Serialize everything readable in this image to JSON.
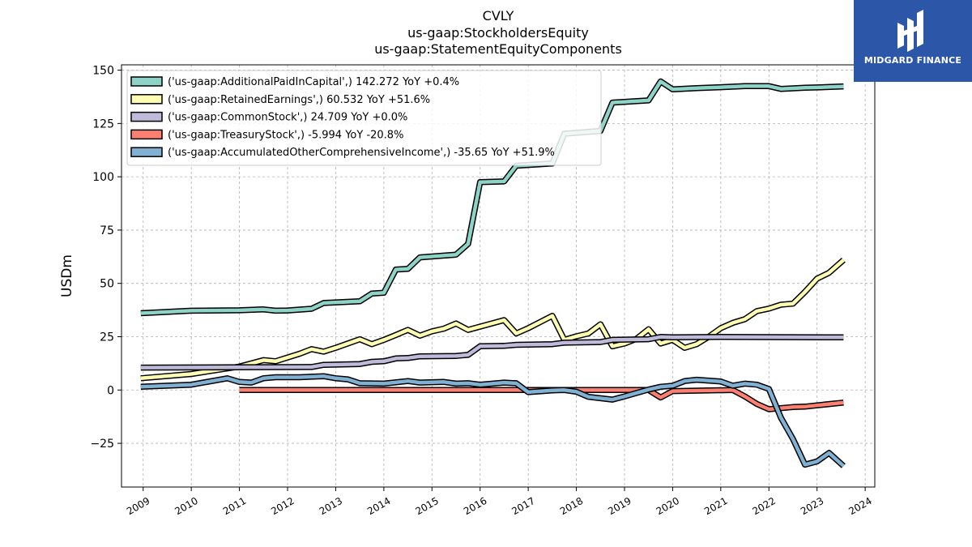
{
  "header": {
    "title_line1": "CVLY",
    "title_line2": "us-gaap:StockholdersEquity",
    "title_line3": "us-gaap:StatementEquityComponents"
  },
  "logo": {
    "text": "MIDGARD FINANCE",
    "color": "#2c56a8"
  },
  "chart_data": {
    "type": "line",
    "title": "CVLY us-gaap:StockholdersEquity us-gaap:StatementEquityComponents",
    "xlabel": "",
    "ylabel": "USDm",
    "xlim": [
      2008.55,
      2024.2
    ],
    "ylim": [
      -45.5,
      152.5
    ],
    "x_ticks": [
      2009,
      2010,
      2011,
      2012,
      2013,
      2014,
      2015,
      2016,
      2017,
      2018,
      2019,
      2020,
      2021,
      2022,
      2023,
      2024
    ],
    "x_tick_labels": [
      "2009",
      "2010",
      "2011",
      "2012",
      "2013",
      "2014",
      "2015",
      "2016",
      "2017",
      "2018",
      "2019",
      "2020",
      "2021",
      "2022",
      "2023",
      "2024"
    ],
    "y_ticks": [
      -25,
      0,
      25,
      50,
      75,
      100,
      125,
      150
    ],
    "y_tick_labels": [
      "−25",
      "0",
      "25",
      "50",
      "75",
      "100",
      "125",
      "150"
    ],
    "grid": true,
    "legend_position": "top-left",
    "series": [
      {
        "name": "('us-gaap:AdditionalPaidInCapital',) 142.272 YoY +0.4%",
        "color": "#8dd3c7",
        "points": [
          [
            2008.95,
            36
          ],
          [
            2010,
            37.2
          ],
          [
            2011,
            37.4
          ],
          [
            2011.5,
            37.8
          ],
          [
            2011.75,
            37.2
          ],
          [
            2012,
            37.3
          ],
          [
            2012.5,
            38.1
          ],
          [
            2012.75,
            40.8
          ],
          [
            2013.5,
            41.6
          ],
          [
            2013.75,
            45.2
          ],
          [
            2014,
            45.6
          ],
          [
            2014.25,
            56.5
          ],
          [
            2014.5,
            56.8
          ],
          [
            2014.75,
            62.2
          ],
          [
            2015.5,
            63.5
          ],
          [
            2015.75,
            68.5
          ],
          [
            2016,
            97.5
          ],
          [
            2016.5,
            97.8
          ],
          [
            2016.75,
            105.2
          ],
          [
            2017.5,
            106.2
          ],
          [
            2017.75,
            120.2
          ],
          [
            2018.5,
            121.5
          ],
          [
            2018.75,
            134.8
          ],
          [
            2019.5,
            135.8
          ],
          [
            2019.75,
            144.7
          ],
          [
            2020,
            141
          ],
          [
            2020.5,
            141.6
          ],
          [
            2021,
            142
          ],
          [
            2021.5,
            142.5
          ],
          [
            2022,
            142.5
          ],
          [
            2022.25,
            141.2
          ],
          [
            2022.75,
            141.8
          ],
          [
            2023,
            141.9
          ],
          [
            2023.55,
            142.4
          ]
        ]
      },
      {
        "name": "('us-gaap:RetainedEarnings',) 60.532 YoY +51.6%",
        "color": "#ffffb3",
        "points": [
          [
            2008.95,
            5.5
          ],
          [
            2010,
            7.5
          ],
          [
            2011,
            11
          ],
          [
            2011.25,
            12.5
          ],
          [
            2011.5,
            14
          ],
          [
            2011.75,
            13.5
          ],
          [
            2012.25,
            17
          ],
          [
            2012.5,
            19.2
          ],
          [
            2012.75,
            18
          ],
          [
            2013,
            19.8
          ],
          [
            2013.5,
            23.8
          ],
          [
            2013.75,
            21.5
          ],
          [
            2014,
            23.5
          ],
          [
            2014.25,
            25.8
          ],
          [
            2014.5,
            28.2
          ],
          [
            2014.75,
            25.5
          ],
          [
            2015,
            27.5
          ],
          [
            2015.25,
            28.8
          ],
          [
            2015.5,
            31.2
          ],
          [
            2015.75,
            28.2
          ],
          [
            2016.5,
            32.8
          ],
          [
            2016.75,
            26.5
          ],
          [
            2017,
            29
          ],
          [
            2017.5,
            34.8
          ],
          [
            2017.75,
            23.5
          ],
          [
            2018,
            25.2
          ],
          [
            2018.25,
            26.5
          ],
          [
            2018.5,
            30.8
          ],
          [
            2018.75,
            20.5
          ],
          [
            2019,
            21.8
          ],
          [
            2019.25,
            24
          ],
          [
            2019.5,
            28.5
          ],
          [
            2019.75,
            21.8
          ],
          [
            2020,
            23.5
          ],
          [
            2020.25,
            19.8
          ],
          [
            2020.5,
            21.5
          ],
          [
            2020.75,
            25
          ],
          [
            2021,
            29
          ],
          [
            2021.25,
            31.5
          ],
          [
            2021.5,
            33.2
          ],
          [
            2021.75,
            37
          ],
          [
            2022,
            38.2
          ],
          [
            2022.25,
            40
          ],
          [
            2022.5,
            40.5
          ],
          [
            2022.75,
            46
          ],
          [
            2023,
            52.2
          ],
          [
            2023.25,
            55
          ],
          [
            2023.55,
            61
          ]
        ]
      },
      {
        "name": "('us-gaap:CommonStock',) 24.709 YoY +0.0%",
        "color": "#bebada",
        "points": [
          [
            2008.95,
            10.5
          ],
          [
            2012.5,
            10.8
          ],
          [
            2012.75,
            11.8
          ],
          [
            2013.5,
            12.2
          ],
          [
            2013.75,
            13.2
          ],
          [
            2014,
            13.5
          ],
          [
            2014.25,
            14.8
          ],
          [
            2014.5,
            15
          ],
          [
            2014.75,
            15.8
          ],
          [
            2015.5,
            16
          ],
          [
            2015.75,
            16.5
          ],
          [
            2016,
            20.5
          ],
          [
            2016.5,
            20.7
          ],
          [
            2016.75,
            21.2
          ],
          [
            2017.5,
            21.5
          ],
          [
            2017.75,
            22.2
          ],
          [
            2018.5,
            22.5
          ],
          [
            2018.75,
            23.5
          ],
          [
            2019.5,
            23.8
          ],
          [
            2019.75,
            24.9
          ],
          [
            2020,
            24.7
          ],
          [
            2020.5,
            24.8
          ],
          [
            2021,
            24.9
          ],
          [
            2023.55,
            24.7
          ]
        ]
      },
      {
        "name": "('us-gaap:TreasuryStock',) -5.994 YoY -20.8%",
        "color": "#fb8072",
        "points": [
          [
            2011,
            0
          ],
          [
            2019.5,
            0
          ],
          [
            2019.75,
            -3.5
          ],
          [
            2020,
            -0.5
          ],
          [
            2021.25,
            0
          ],
          [
            2021.5,
            -3
          ],
          [
            2021.75,
            -6.5
          ],
          [
            2022,
            -9
          ],
          [
            2022.5,
            -8
          ],
          [
            2022.75,
            -7.8
          ],
          [
            2023,
            -7.2
          ],
          [
            2023.55,
            -5.9
          ]
        ]
      },
      {
        "name": "('us-gaap:AccumulatedOtherComprehensiveIncome',) -35.65 YoY +51.9%",
        "color": "#80b1d3",
        "points": [
          [
            2008.95,
            1.5
          ],
          [
            2010,
            2.5
          ],
          [
            2010.75,
            5.5
          ],
          [
            2011,
            3.8
          ],
          [
            2011.25,
            3.5
          ],
          [
            2011.5,
            5.5
          ],
          [
            2011.75,
            6
          ],
          [
            2012.25,
            6
          ],
          [
            2012.75,
            6.5
          ],
          [
            2013,
            5.5
          ],
          [
            2013.25,
            5
          ],
          [
            2013.5,
            3.2
          ],
          [
            2014,
            3
          ],
          [
            2014.5,
            4.2
          ],
          [
            2014.75,
            3.5
          ],
          [
            2015.25,
            3.8
          ],
          [
            2015.5,
            3
          ],
          [
            2015.75,
            3.2
          ],
          [
            2016,
            2.5
          ],
          [
            2016.5,
            3.5
          ],
          [
            2016.75,
            3.2
          ],
          [
            2017,
            -1
          ],
          [
            2017.5,
            -0.2
          ],
          [
            2017.75,
            0
          ],
          [
            2018,
            -0.8
          ],
          [
            2018.25,
            -3.2
          ],
          [
            2018.75,
            -4.5
          ],
          [
            2019,
            -3
          ],
          [
            2019.5,
            0.2
          ],
          [
            2019.75,
            1.5
          ],
          [
            2020,
            2
          ],
          [
            2020.25,
            4.2
          ],
          [
            2020.5,
            4.8
          ],
          [
            2021,
            4
          ],
          [
            2021.25,
            2
          ],
          [
            2021.5,
            3
          ],
          [
            2021.75,
            2.5
          ],
          [
            2022,
            0.5
          ],
          [
            2022.25,
            -13
          ],
          [
            2022.5,
            -23
          ],
          [
            2022.75,
            -35
          ],
          [
            2023,
            -33.5
          ],
          [
            2023.25,
            -29.5
          ],
          [
            2023.55,
            -35.6
          ]
        ]
      }
    ]
  }
}
